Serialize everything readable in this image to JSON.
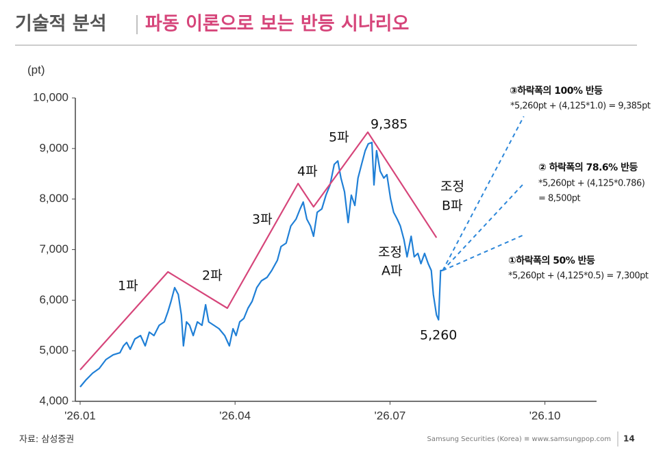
{
  "header": {
    "title": "기술적 분석",
    "subtitle": "파동 이론으로 보는 반등 시나리오"
  },
  "chart_data": {
    "type": "line",
    "y_label": "(pt)",
    "xlim": [
      0,
      10
    ],
    "xticks": [
      {
        "value": 0,
        "label": "'26.01"
      },
      {
        "value": 3,
        "label": "'26.04"
      },
      {
        "value": 6,
        "label": "'26.07"
      },
      {
        "value": 9,
        "label": "'26.10"
      }
    ],
    "ylim": [
      4000,
      10000
    ],
    "yticks": [
      {
        "value": 4000,
        "label": "4,000"
      },
      {
        "value": 5000,
        "label": "5,000"
      },
      {
        "value": 6000,
        "label": "6,000"
      },
      {
        "value": 7000,
        "label": "7,000"
      },
      {
        "value": 8000,
        "label": "8,000"
      },
      {
        "value": 9000,
        "label": "9,000"
      },
      {
        "value": 10000,
        "label": "10,000"
      }
    ],
    "series": [
      {
        "color": "#1f7fd6",
        "style": "solid",
        "x": [
          0,
          0.11,
          0.24,
          0.37,
          0.5,
          0.64,
          0.77,
          0.84,
          0.9,
          0.97,
          1.06,
          1.17,
          1.26,
          1.34,
          1.43,
          1.53,
          1.63,
          1.7,
          1.76,
          1.83,
          1.9,
          1.96,
          2.0,
          2.06,
          2.12,
          2.19,
          2.27,
          2.36,
          2.43,
          2.49,
          2.59,
          2.69,
          2.8,
          2.89,
          2.96,
          3.02,
          3.09,
          3.17,
          3.25,
          3.33,
          3.42,
          3.51,
          3.62,
          3.71,
          3.82,
          3.89,
          3.99,
          4.08,
          4.18,
          4.26,
          4.32,
          4.39,
          4.46,
          4.52,
          4.59,
          4.68,
          4.76,
          4.84,
          4.92,
          4.99,
          5.05,
          5.12,
          5.19,
          5.25,
          5.32,
          5.38,
          5.45,
          5.52,
          5.58,
          5.65,
          5.69,
          5.74,
          5.81,
          5.88,
          5.94,
          6.01,
          6.07,
          6.14,
          6.2,
          6.27,
          6.33,
          6.41,
          6.47,
          6.54,
          6.6,
          6.67,
          6.74,
          6.8,
          6.84,
          6.9,
          6.94,
          6.98,
          7.02
        ],
        "values": [
          4284,
          4420,
          4555,
          4650,
          4826,
          4920,
          4960,
          5097,
          5165,
          5030,
          5232,
          5300,
          5097,
          5368,
          5300,
          5503,
          5571,
          5774,
          5977,
          6248,
          6113,
          5706,
          5097,
          5571,
          5503,
          5300,
          5571,
          5503,
          5910,
          5571,
          5503,
          5435,
          5300,
          5097,
          5435,
          5300,
          5571,
          5639,
          5842,
          5977,
          6248,
          6384,
          6451,
          6587,
          6790,
          7061,
          7129,
          7467,
          7603,
          7806,
          7941,
          7603,
          7467,
          7264,
          7738,
          7806,
          8077,
          8280,
          8686,
          8754,
          8415,
          8144,
          7535,
          8077,
          7873,
          8415,
          8686,
          8957,
          9093,
          9120,
          8280,
          8957,
          8551,
          8415,
          8483,
          8009,
          7738,
          7603,
          7467,
          7197,
          6858,
          7264,
          6858,
          6925,
          6722,
          6925,
          6722,
          6587,
          6113,
          5706,
          5612,
          6587,
          6587
        ]
      },
      {
        "color": "#d6457a",
        "style": "solid",
        "x": [
          0,
          1.7,
          2.85,
          4.22,
          4.52,
          5.57,
          6.9
        ],
        "values": [
          4623,
          6560,
          5842,
          8307,
          7846,
          9323,
          7237
        ]
      },
      {
        "color": "#2b86d9",
        "style": "dashed",
        "x": [
          7.02,
          8.59
        ],
        "values": [
          6587,
          9634
        ]
      },
      {
        "color": "#2b86d9",
        "style": "dashed",
        "x": [
          7.02,
          8.59
        ],
        "values": [
          6587,
          8307
        ]
      },
      {
        "color": "#2b86d9",
        "style": "dashed",
        "x": [
          7.02,
          8.59
        ],
        "values": [
          6587,
          7291
        ]
      }
    ],
    "annotations": [
      "1파",
      "2파",
      "3파",
      "4파",
      "5파",
      "9,385",
      "조정",
      "A파",
      "조정",
      "B파",
      "5,260",
      "③하락폭의 100% 반등",
      "*5,260pt + (4,125*1.0) = 9,385pt",
      "② 하락폭의 78.6% 반등",
      "*5,260pt + (4,125*0.786)",
      "= 8,500pt",
      "①하락폭의 50% 반등",
      "*5,260pt + (4,125*0.5) = 7,300pt"
    ]
  },
  "footer": {
    "source": "자료: 삼성증권",
    "company": "Samsung Securities (Korea) ≡ www.samsungpop.com",
    "page": "14"
  }
}
